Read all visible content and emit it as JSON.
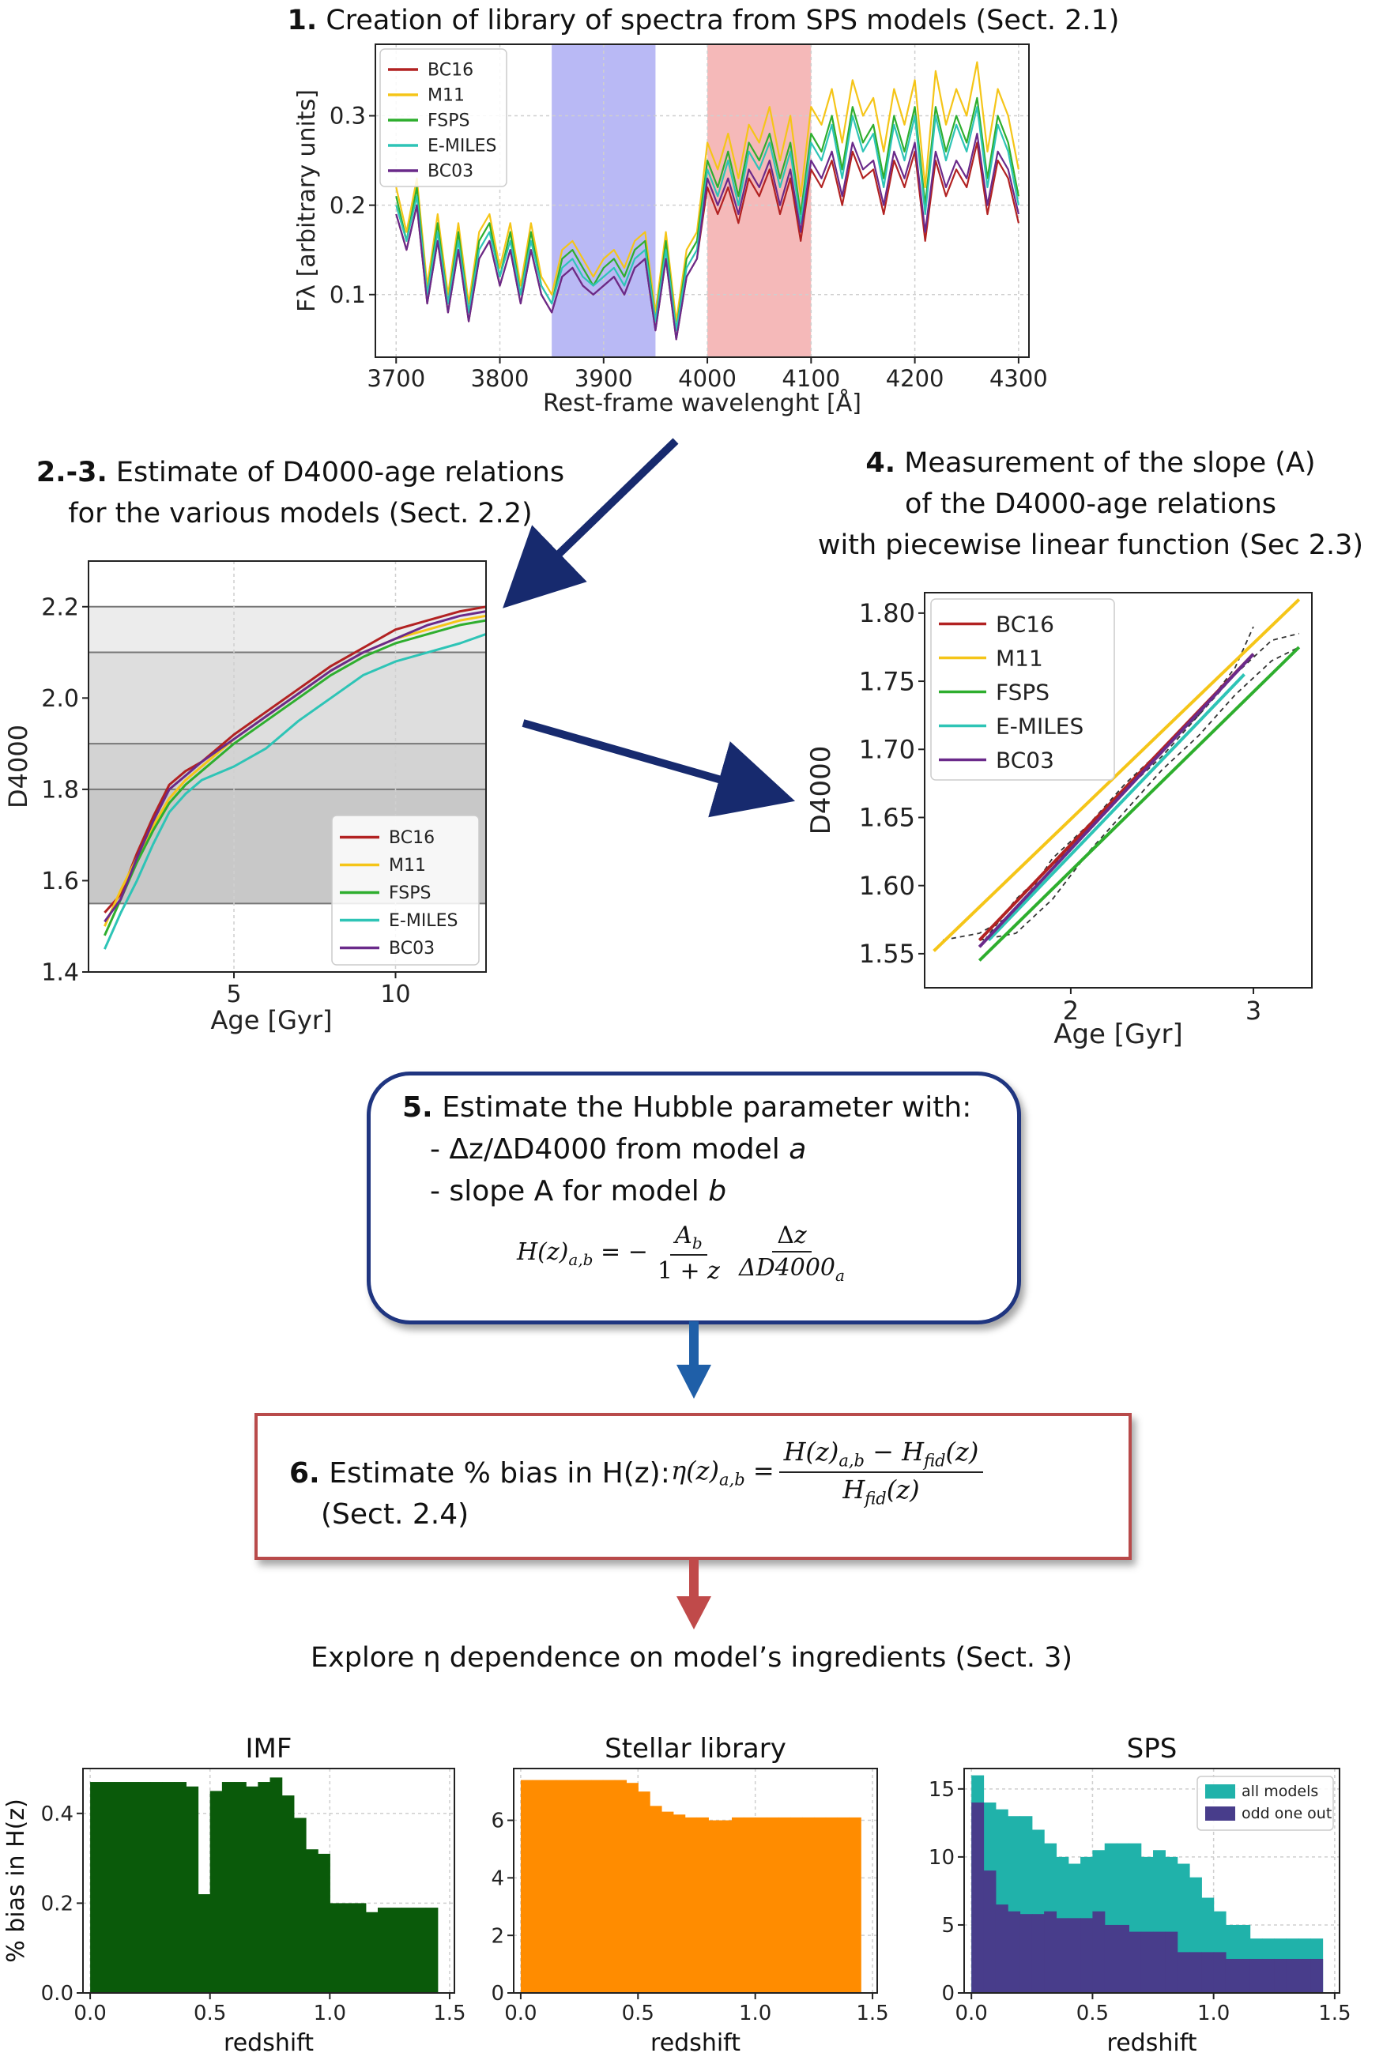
{
  "step1": {
    "num": "1.",
    "text": "Creation of library of spectra from SPS models (Sect. 2.1)"
  },
  "step23": {
    "num": "2.-3.",
    "line1": "Estimate of D4000-age relations",
    "line2": "for the various models (Sect. 2.2)"
  },
  "step4": {
    "num": "4.",
    "line1": "Measurement of the slope (A)",
    "line2": "of the D4000-age relations",
    "line3": "with piecewise linear function (Sec 2.3)"
  },
  "step5": {
    "num": "5.",
    "title": "Estimate the Hubble parameter with:",
    "bullet1": "- Δz/ΔD4000 from model",
    "bullet1_var": "a",
    "bullet2": "- slope A for model",
    "bullet2_var": "b"
  },
  "step6": {
    "num": "6.",
    "text": "Estimate % bias in H(z):",
    "sect": "(Sect. 2.4)"
  },
  "explore": {
    "text": "Explore η dependence on model’s ingredients (Sect. 3)"
  },
  "colors": {
    "BC16": "#b22222",
    "M11": "#f5c518",
    "FSPS": "#2eae2e",
    "E-MILES": "#2ec4b6",
    "BC03": "#6a2a8a"
  },
  "chart_data": [
    {
      "type": "line",
      "id": "spectra",
      "xlabel": "Rest-frame wavelenght [Å]",
      "ylabel": "Fλ [arbitrary units]",
      "xlim": [
        3680,
        4310
      ],
      "ylim": [
        0.03,
        0.38
      ],
      "xticks": [
        "3700",
        "3800",
        "3900",
        "4000",
        "4100",
        "4200",
        "4300"
      ],
      "yticks": [
        "0.1",
        "0.2",
        "0.3"
      ],
      "bands": [
        {
          "x0": 3850,
          "x1": 3950,
          "color": "#b9b9f5"
        },
        {
          "x0": 4000,
          "x1": 4100,
          "color": "#f5b9b9"
        }
      ],
      "legend": [
        "BC16",
        "M11",
        "FSPS",
        "E-MILES",
        "BC03"
      ],
      "legend_position": "top-left",
      "grid": true,
      "x": [
        3700,
        3710,
        3720,
        3730,
        3740,
        3750,
        3760,
        3770,
        3780,
        3790,
        3800,
        3810,
        3820,
        3830,
        3840,
        3850,
        3860,
        3870,
        3880,
        3890,
        3900,
        3910,
        3920,
        3930,
        3940,
        3950,
        3960,
        3970,
        3980,
        3990,
        4000,
        4010,
        4020,
        4030,
        4040,
        4050,
        4060,
        4070,
        4080,
        4090,
        4100,
        4110,
        4120,
        4130,
        4140,
        4150,
        4160,
        4170,
        4180,
        4190,
        4200,
        4210,
        4220,
        4230,
        4240,
        4250,
        4260,
        4270,
        4280,
        4290,
        4300
      ],
      "series": [
        {
          "name": "BC16",
          "values": [
            0.19,
            0.15,
            0.2,
            0.09,
            0.16,
            0.08,
            0.15,
            0.07,
            0.14,
            0.16,
            0.11,
            0.15,
            0.09,
            0.15,
            0.1,
            0.08,
            0.12,
            0.13,
            0.11,
            0.1,
            0.11,
            0.12,
            0.1,
            0.13,
            0.14,
            0.06,
            0.14,
            0.05,
            0.12,
            0.14,
            0.22,
            0.19,
            0.22,
            0.18,
            0.23,
            0.21,
            0.24,
            0.19,
            0.23,
            0.16,
            0.24,
            0.22,
            0.25,
            0.2,
            0.26,
            0.23,
            0.24,
            0.19,
            0.25,
            0.22,
            0.26,
            0.16,
            0.25,
            0.21,
            0.24,
            0.22,
            0.27,
            0.19,
            0.25,
            0.23,
            0.18
          ]
        },
        {
          "name": "M11",
          "values": [
            0.22,
            0.17,
            0.23,
            0.11,
            0.19,
            0.1,
            0.18,
            0.09,
            0.17,
            0.19,
            0.13,
            0.18,
            0.11,
            0.18,
            0.12,
            0.1,
            0.15,
            0.16,
            0.14,
            0.12,
            0.14,
            0.15,
            0.13,
            0.16,
            0.17,
            0.08,
            0.17,
            0.07,
            0.15,
            0.17,
            0.27,
            0.24,
            0.28,
            0.23,
            0.29,
            0.27,
            0.31,
            0.25,
            0.3,
            0.21,
            0.31,
            0.29,
            0.33,
            0.27,
            0.34,
            0.3,
            0.32,
            0.26,
            0.33,
            0.29,
            0.34,
            0.22,
            0.35,
            0.29,
            0.33,
            0.3,
            0.36,
            0.26,
            0.33,
            0.3,
            0.24
          ]
        },
        {
          "name": "FSPS",
          "values": [
            0.21,
            0.16,
            0.22,
            0.1,
            0.18,
            0.09,
            0.17,
            0.08,
            0.16,
            0.18,
            0.12,
            0.17,
            0.1,
            0.17,
            0.11,
            0.09,
            0.14,
            0.15,
            0.13,
            0.11,
            0.13,
            0.14,
            0.12,
            0.15,
            0.16,
            0.07,
            0.16,
            0.06,
            0.14,
            0.16,
            0.25,
            0.22,
            0.26,
            0.21,
            0.27,
            0.25,
            0.28,
            0.23,
            0.27,
            0.19,
            0.28,
            0.26,
            0.3,
            0.24,
            0.31,
            0.27,
            0.29,
            0.23,
            0.3,
            0.26,
            0.31,
            0.2,
            0.31,
            0.26,
            0.3,
            0.27,
            0.32,
            0.23,
            0.3,
            0.27,
            0.21
          ]
        },
        {
          "name": "E-MILES",
          "values": [
            0.2,
            0.16,
            0.21,
            0.1,
            0.17,
            0.09,
            0.16,
            0.08,
            0.15,
            0.17,
            0.12,
            0.16,
            0.1,
            0.16,
            0.11,
            0.09,
            0.13,
            0.14,
            0.12,
            0.11,
            0.12,
            0.13,
            0.11,
            0.14,
            0.15,
            0.07,
            0.15,
            0.06,
            0.13,
            0.15,
            0.24,
            0.21,
            0.25,
            0.2,
            0.26,
            0.24,
            0.27,
            0.22,
            0.26,
            0.18,
            0.27,
            0.25,
            0.29,
            0.23,
            0.3,
            0.26,
            0.28,
            0.22,
            0.29,
            0.25,
            0.3,
            0.19,
            0.3,
            0.25,
            0.29,
            0.26,
            0.31,
            0.22,
            0.29,
            0.26,
            0.2
          ]
        },
        {
          "name": "BC03",
          "values": [
            0.19,
            0.15,
            0.2,
            0.09,
            0.16,
            0.08,
            0.15,
            0.07,
            0.14,
            0.16,
            0.11,
            0.15,
            0.09,
            0.15,
            0.1,
            0.08,
            0.12,
            0.13,
            0.11,
            0.1,
            0.11,
            0.12,
            0.1,
            0.13,
            0.14,
            0.06,
            0.14,
            0.05,
            0.12,
            0.14,
            0.23,
            0.2,
            0.23,
            0.19,
            0.24,
            0.22,
            0.25,
            0.2,
            0.24,
            0.17,
            0.25,
            0.23,
            0.26,
            0.21,
            0.27,
            0.24,
            0.25,
            0.2,
            0.26,
            0.23,
            0.27,
            0.17,
            0.26,
            0.22,
            0.25,
            0.23,
            0.28,
            0.2,
            0.26,
            0.24,
            0.19
          ]
        }
      ]
    },
    {
      "type": "line",
      "id": "d4000-age",
      "xlabel": "Age [Gyr]",
      "ylabel": "D4000",
      "xlim": [
        0.5,
        12.8
      ],
      "ylim": [
        1.4,
        2.3
      ],
      "xticks": [
        "5",
        "10"
      ],
      "yticks": [
        "1.4",
        "1.6",
        "1.8",
        "2.0",
        "2.2"
      ],
      "bands": [
        {
          "y0": 1.55,
          "y1": 1.8,
          "color": "#c8c8c8"
        },
        {
          "y0": 1.8,
          "y1": 1.9,
          "color": "#d3d3d3"
        },
        {
          "y0": 1.9,
          "y1": 2.1,
          "color": "#dedede"
        },
        {
          "y0": 2.1,
          "y1": 2.2,
          "color": "#ececec"
        }
      ],
      "legend": [
        "BC16",
        "M11",
        "FSPS",
        "E-MILES",
        "BC03"
      ],
      "legend_position": "lower-right",
      "grid": true,
      "x": [
        1,
        1.5,
        2,
        2.5,
        3,
        3.5,
        4,
        5,
        6,
        7,
        8,
        9,
        10,
        11,
        12,
        12.8
      ],
      "series": [
        {
          "name": "BC16",
          "values": [
            1.53,
            1.57,
            1.66,
            1.74,
            1.81,
            1.84,
            1.86,
            1.92,
            1.97,
            2.02,
            2.07,
            2.11,
            2.15,
            2.17,
            2.19,
            2.2
          ]
        },
        {
          "name": "M11",
          "values": [
            1.5,
            1.58,
            1.65,
            1.72,
            1.78,
            1.82,
            1.85,
            1.91,
            1.96,
            2.01,
            2.06,
            2.1,
            2.13,
            2.15,
            2.17,
            2.18
          ]
        },
        {
          "name": "FSPS",
          "values": [
            1.48,
            1.56,
            1.64,
            1.71,
            1.77,
            1.81,
            1.84,
            1.9,
            1.95,
            2.0,
            2.05,
            2.09,
            2.12,
            2.14,
            2.16,
            2.17
          ]
        },
        {
          "name": "E-MILES",
          "values": [
            1.45,
            1.53,
            1.6,
            1.68,
            1.75,
            1.79,
            1.82,
            1.85,
            1.89,
            1.95,
            2.0,
            2.05,
            2.08,
            2.1,
            2.12,
            2.14
          ]
        },
        {
          "name": "BC03",
          "values": [
            1.51,
            1.56,
            1.65,
            1.73,
            1.8,
            1.83,
            1.86,
            1.91,
            1.96,
            2.01,
            2.06,
            2.1,
            2.13,
            2.16,
            2.18,
            2.19
          ]
        }
      ]
    },
    {
      "type": "line",
      "id": "slope-fit",
      "xlabel": "Age [Gyr]",
      "ylabel": "D4000",
      "xlim": [
        1.2,
        3.32
      ],
      "ylim": [
        1.525,
        1.815
      ],
      "xticks": [
        "2",
        "3"
      ],
      "yticks": [
        "1.55",
        "1.60",
        "1.65",
        "1.70",
        "1.75",
        "1.80"
      ],
      "legend": [
        "BC16",
        "M11",
        "FSPS",
        "E-MILES",
        "BC03"
      ],
      "legend_position": "top-left",
      "grid": true,
      "series": [
        {
          "name": "BC16",
          "x": [
            1.5,
            3.0
          ],
          "values": [
            1.56,
            1.77
          ]
        },
        {
          "name": "M11",
          "x": [
            1.25,
            3.25
          ],
          "values": [
            1.552,
            1.81
          ]
        },
        {
          "name": "FSPS",
          "x": [
            1.5,
            3.25
          ],
          "values": [
            1.545,
            1.775
          ]
        },
        {
          "name": "E-MILES",
          "x": [
            1.55,
            2.95
          ],
          "values": [
            1.56,
            1.755
          ]
        },
        {
          "name": "BC03",
          "x": [
            1.5,
            3.0
          ],
          "values": [
            1.555,
            1.77
          ]
        }
      ],
      "dashed_data": [
        {
          "x": [
            1.3,
            1.5,
            1.7,
            1.9,
            2.1,
            2.3,
            2.5,
            2.7,
            2.9,
            3.0
          ],
          "values": [
            1.56,
            1.565,
            1.58,
            1.62,
            1.645,
            1.675,
            1.7,
            1.725,
            1.76,
            1.79
          ]
        },
        {
          "x": [
            1.5,
            1.7,
            1.9,
            2.1,
            2.3,
            2.5,
            2.7,
            2.9,
            3.1,
            3.25
          ],
          "values": [
            1.555,
            1.59,
            1.615,
            1.64,
            1.67,
            1.695,
            1.725,
            1.755,
            1.78,
            1.785
          ]
        },
        {
          "x": [
            1.5,
            1.7,
            1.9,
            2.1,
            2.3,
            2.5,
            2.7,
            2.9,
            3.1,
            3.25
          ],
          "values": [
            1.56,
            1.565,
            1.59,
            1.625,
            1.655,
            1.685,
            1.71,
            1.74,
            1.765,
            1.775
          ]
        }
      ]
    },
    {
      "type": "bar",
      "id": "imf",
      "title": "IMF",
      "xlabel": "redshift",
      "ylabel": "% bias in H(z)",
      "xlim": [
        -0.03,
        1.52
      ],
      "ylim": [
        0,
        0.5
      ],
      "xticks": [
        "0.0",
        "0.5",
        "1.0",
        "1.5"
      ],
      "yticks": [
        "0.0",
        "0.2",
        "0.4"
      ],
      "color": "#0a5a0a",
      "bin_width": 0.05,
      "x": [
        0.0,
        0.05,
        0.1,
        0.15,
        0.2,
        0.25,
        0.3,
        0.35,
        0.4,
        0.45,
        0.5,
        0.55,
        0.6,
        0.65,
        0.7,
        0.75,
        0.8,
        0.85,
        0.9,
        0.95,
        1.0,
        1.05,
        1.1,
        1.15,
        1.2,
        1.25,
        1.3,
        1.35,
        1.4
      ],
      "values": [
        0.47,
        0.47,
        0.47,
        0.47,
        0.47,
        0.47,
        0.47,
        0.47,
        0.46,
        0.22,
        0.45,
        0.47,
        0.47,
        0.46,
        0.47,
        0.48,
        0.44,
        0.39,
        0.32,
        0.31,
        0.2,
        0.2,
        0.2,
        0.18,
        0.19,
        0.19,
        0.19,
        0.19,
        0.19
      ]
    },
    {
      "type": "bar",
      "id": "stellar-library",
      "title": "Stellar library",
      "xlabel": "redshift",
      "xlim": [
        -0.03,
        1.52
      ],
      "ylim": [
        0,
        7.8
      ],
      "xticks": [
        "0.0",
        "0.5",
        "1.0",
        "1.5"
      ],
      "yticks": [
        "0",
        "2",
        "4",
        "6"
      ],
      "color": "#ff8c00",
      "bin_width": 0.05,
      "x": [
        0.0,
        0.05,
        0.1,
        0.15,
        0.2,
        0.25,
        0.3,
        0.35,
        0.4,
        0.45,
        0.5,
        0.55,
        0.6,
        0.65,
        0.7,
        0.75,
        0.8,
        0.85,
        0.9,
        0.95,
        1.0,
        1.05,
        1.1,
        1.15,
        1.2,
        1.25,
        1.3,
        1.35,
        1.4
      ],
      "values": [
        7.4,
        7.4,
        7.4,
        7.4,
        7.4,
        7.4,
        7.4,
        7.4,
        7.4,
        7.3,
        7.0,
        6.5,
        6.3,
        6.2,
        6.1,
        6.1,
        6.0,
        6.0,
        6.1,
        6.1,
        6.1,
        6.1,
        6.1,
        6.1,
        6.1,
        6.1,
        6.1,
        6.1,
        6.1
      ]
    },
    {
      "type": "bar",
      "id": "sps",
      "title": "SPS",
      "xlabel": "redshift",
      "xlim": [
        -0.03,
        1.52
      ],
      "ylim": [
        0,
        16.5
      ],
      "xticks": [
        "0.0",
        "0.5",
        "1.0",
        "1.5"
      ],
      "yticks": [
        "0",
        "5",
        "10",
        "15"
      ],
      "legend": [
        "all models",
        "odd one out"
      ],
      "legend_position": "top-right",
      "bin_width": 0.05,
      "x": [
        0.0,
        0.05,
        0.1,
        0.15,
        0.2,
        0.25,
        0.3,
        0.35,
        0.4,
        0.45,
        0.5,
        0.55,
        0.6,
        0.65,
        0.7,
        0.75,
        0.8,
        0.85,
        0.9,
        0.95,
        1.0,
        1.05,
        1.1,
        1.15,
        1.2,
        1.25,
        1.3,
        1.35,
        1.4
      ],
      "series": [
        {
          "name": "all models",
          "color": "#20b2aa",
          "values": [
            16,
            14,
            13.5,
            13,
            13,
            12,
            11,
            10,
            9.5,
            10,
            10.5,
            11,
            11,
            11,
            10,
            10.5,
            10,
            9.5,
            8.5,
            7,
            6,
            5,
            5,
            4,
            4,
            4,
            4,
            4,
            4
          ]
        },
        {
          "name": "odd one out",
          "color": "#483d8b",
          "values": [
            14,
            9,
            6.5,
            6,
            5.8,
            5.8,
            6,
            5.5,
            5.5,
            5.5,
            6,
            5,
            5,
            4.5,
            4.5,
            4.5,
            4.5,
            3,
            3,
            3,
            3,
            2.5,
            2.5,
            2.5,
            2.5,
            2.5,
            2.5,
            2.5,
            2.5
          ]
        }
      ]
    }
  ]
}
